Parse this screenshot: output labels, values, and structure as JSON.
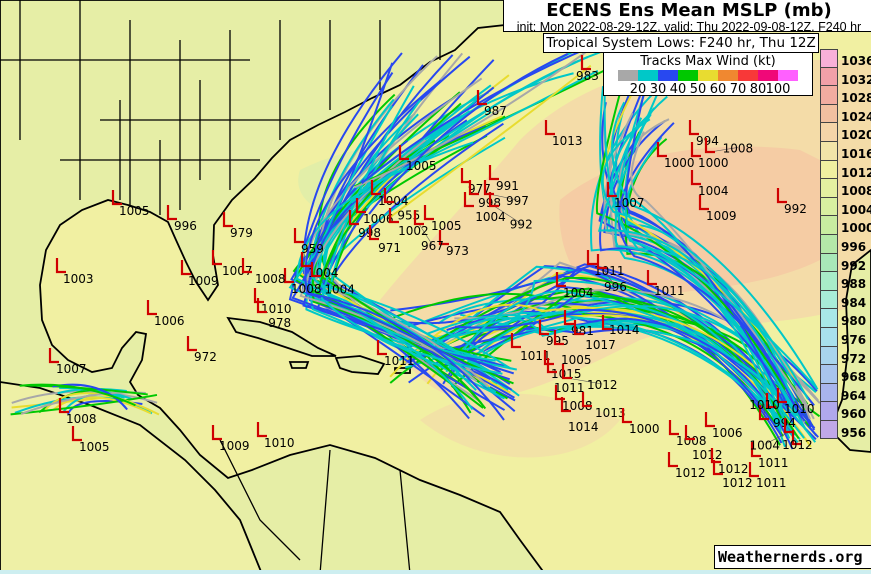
{
  "header": {
    "title": "ECENS Ens Mean MSLP (mb)",
    "subtitle": "init: Mon 2022-08-29-12Z, valid: Thu 2022-09-08-12Z, F240 hr",
    "systems_label": "Tropical System Lows: F240 hr, Thu 12Z"
  },
  "legend": {
    "title": "Tracks Max Wind (kt)",
    "colors": [
      "#a8a8a8",
      "#00c8c8",
      "#2848f0",
      "#00c800",
      "#e8dc30",
      "#f08830",
      "#f83838",
      "#f00878",
      "#ff60ff"
    ],
    "ticks": [
      "20",
      "30",
      "40",
      "50",
      "60",
      "70",
      "80",
      "100"
    ]
  },
  "colorbar": {
    "labels": [
      "1036",
      "1032",
      "1028",
      "1024",
      "1020",
      "1016",
      "1012",
      "1008",
      "1004",
      "1000",
      "996",
      "992",
      "988",
      "984",
      "980",
      "976",
      "972",
      "968",
      "964",
      "960",
      "956"
    ],
    "colors": [
      "#f8b0d8",
      "#f2a0a8",
      "#f2aca0",
      "#f2c0a0",
      "#f5d4a8",
      "#f2e4a8",
      "#f0f0a0",
      "#e4f0a0",
      "#d8f0a0",
      "#c8eca0",
      "#b4e8a8",
      "#a8e8b8",
      "#a8ecc8",
      "#a8ecd8",
      "#a8e8e8",
      "#a8e0ec",
      "#a8d4ec",
      "#a8c4ec",
      "#a8b4ec",
      "#b0a8ec",
      "#c0a8e8"
    ]
  },
  "lows": [
    "987",
    "983",
    "1013",
    "1005",
    "977",
    "998",
    "1004",
    "991",
    "997",
    "992",
    "1004",
    "1006",
    "998",
    "955",
    "1002",
    "971",
    "1005",
    "973",
    "967",
    "959",
    "1004",
    "1008",
    "1004",
    "979",
    "1005",
    "996",
    "1003",
    "1009",
    "1007",
    "1008",
    "1010",
    "978",
    "1006",
    "972",
    "1007",
    "1008",
    "1005",
    "1009",
    "1010",
    "1011",
    "1007",
    "1004",
    "1009",
    "992",
    "994",
    "1000",
    "1000",
    "1008",
    "1011",
    "996",
    "1011",
    "1004",
    "981",
    "1017",
    "995",
    "1005",
    "1011",
    "1014",
    "1015",
    "1011",
    "1012",
    "1008",
    "1013",
    "1014",
    "1000",
    "1008",
    "1012",
    "1006",
    "1012",
    "1012",
    "1012",
    "1011",
    "1011",
    "1010",
    "994",
    "1012",
    "1004",
    "1010"
  ],
  "credit": "Weathernerds.org"
}
